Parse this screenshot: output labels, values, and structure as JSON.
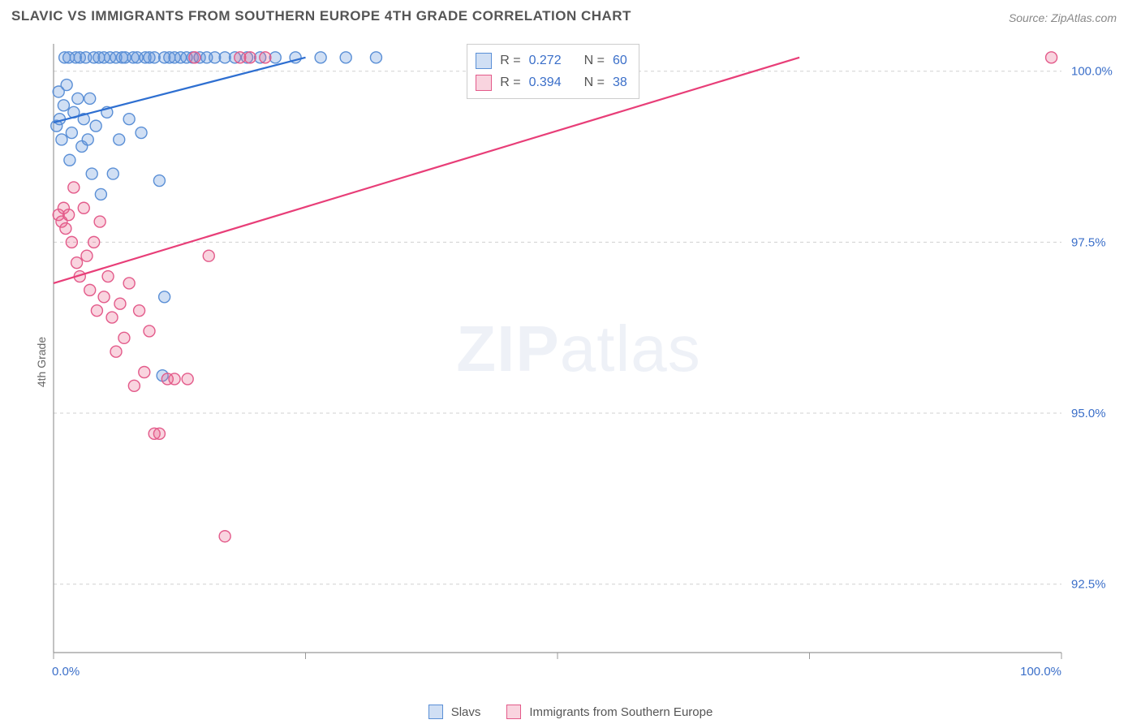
{
  "title": "SLAVIC VS IMMIGRANTS FROM SOUTHERN EUROPE 4TH GRADE CORRELATION CHART",
  "source_label": "Source: ZipAtlas.com",
  "ylabel": "4th Grade",
  "watermark_strong": "ZIP",
  "watermark_light": "atlas",
  "chart": {
    "type": "scatter",
    "xlim": [
      0,
      100
    ],
    "ylim": [
      91.5,
      100.4
    ],
    "x_ticks": [
      0,
      25,
      50,
      75,
      100
    ],
    "x_tick_labels_visible": [
      "0.0%",
      "",
      "",
      "",
      "100.0%"
    ],
    "y_ticks": [
      92.5,
      95.0,
      97.5,
      100.0
    ],
    "y_tick_labels": [
      "92.5%",
      "95.0%",
      "97.5%",
      "100.0%"
    ],
    "grid_color": "#d0d0d0",
    "grid_dash": "4,4",
    "axis_line_color": "#999999",
    "background_color": "#ffffff",
    "marker_radius": 7,
    "marker_stroke_width": 1.4,
    "line_width": 2.2,
    "label_fontsize": 15,
    "tick_color": "#3b6fc9"
  },
  "series": [
    {
      "key": "slavs",
      "label": "Slavs",
      "fill": "rgba(100,150,220,0.30)",
      "stroke": "#5a8fd6",
      "line_color": "#2e6fd1",
      "r_value": "0.272",
      "n_value": "60",
      "trend": {
        "x1": 0,
        "y1": 99.25,
        "x2": 25,
        "y2": 100.2
      },
      "points": [
        [
          0.3,
          99.2
        ],
        [
          0.5,
          99.7
        ],
        [
          0.6,
          99.3
        ],
        [
          0.8,
          99.0
        ],
        [
          1.0,
          99.5
        ],
        [
          1.1,
          100.2
        ],
        [
          1.3,
          99.8
        ],
        [
          1.5,
          100.2
        ],
        [
          1.6,
          98.7
        ],
        [
          1.8,
          99.1
        ],
        [
          2.0,
          99.4
        ],
        [
          2.2,
          100.2
        ],
        [
          2.4,
          99.6
        ],
        [
          2.6,
          100.2
        ],
        [
          2.8,
          98.9
        ],
        [
          3.0,
          99.3
        ],
        [
          3.2,
          100.2
        ],
        [
          3.4,
          99.0
        ],
        [
          3.6,
          99.6
        ],
        [
          3.8,
          98.5
        ],
        [
          4.0,
          100.2
        ],
        [
          4.2,
          99.2
        ],
        [
          4.5,
          100.2
        ],
        [
          4.7,
          98.2
        ],
        [
          5.0,
          100.2
        ],
        [
          5.3,
          99.4
        ],
        [
          5.6,
          100.2
        ],
        [
          5.9,
          98.5
        ],
        [
          6.2,
          100.2
        ],
        [
          6.5,
          99.0
        ],
        [
          6.8,
          100.2
        ],
        [
          7.1,
          100.2
        ],
        [
          7.5,
          99.3
        ],
        [
          7.9,
          100.2
        ],
        [
          8.3,
          100.2
        ],
        [
          8.7,
          99.1
        ],
        [
          9.1,
          100.2
        ],
        [
          9.5,
          100.2
        ],
        [
          10.0,
          100.2
        ],
        [
          10.5,
          98.4
        ],
        [
          11.0,
          100.2
        ],
        [
          11.5,
          100.2
        ],
        [
          12.0,
          100.2
        ],
        [
          12.6,
          100.2
        ],
        [
          13.2,
          100.2
        ],
        [
          13.8,
          100.2
        ],
        [
          14.5,
          100.2
        ],
        [
          15.2,
          100.2
        ],
        [
          16.0,
          100.2
        ],
        [
          17.0,
          100.2
        ],
        [
          18.0,
          100.2
        ],
        [
          19.2,
          100.2
        ],
        [
          20.5,
          100.2
        ],
        [
          22.0,
          100.2
        ],
        [
          24.0,
          100.2
        ],
        [
          26.5,
          100.2
        ],
        [
          29.0,
          100.2
        ],
        [
          32.0,
          100.2
        ],
        [
          10.8,
          95.55
        ],
        [
          11.0,
          96.7
        ]
      ]
    },
    {
      "key": "south_europe",
      "label": "Immigrants from Southern Europe",
      "fill": "rgba(235,100,140,0.28)",
      "stroke": "#e35a8a",
      "line_color": "#e83e78",
      "r_value": "0.394",
      "n_value": "38",
      "trend": {
        "x1": 0,
        "y1": 96.9,
        "x2": 74,
        "y2": 100.2
      },
      "points": [
        [
          0.5,
          97.9
        ],
        [
          0.8,
          97.8
        ],
        [
          1.0,
          98.0
        ],
        [
          1.2,
          97.7
        ],
        [
          1.5,
          97.9
        ],
        [
          1.8,
          97.5
        ],
        [
          2.0,
          98.3
        ],
        [
          2.3,
          97.2
        ],
        [
          2.6,
          97.0
        ],
        [
          3.0,
          98.0
        ],
        [
          3.3,
          97.3
        ],
        [
          3.6,
          96.8
        ],
        [
          4.0,
          97.5
        ],
        [
          4.3,
          96.5
        ],
        [
          4.6,
          97.8
        ],
        [
          5.0,
          96.7
        ],
        [
          5.4,
          97.0
        ],
        [
          5.8,
          96.4
        ],
        [
          6.2,
          95.9
        ],
        [
          6.6,
          96.6
        ],
        [
          7.0,
          96.1
        ],
        [
          7.5,
          96.9
        ],
        [
          8.0,
          95.4
        ],
        [
          8.5,
          96.5
        ],
        [
          9.0,
          95.6
        ],
        [
          9.5,
          96.2
        ],
        [
          10.0,
          94.7
        ],
        [
          10.5,
          94.7
        ],
        [
          11.3,
          95.5
        ],
        [
          12.0,
          95.5
        ],
        [
          13.3,
          95.5
        ],
        [
          14.0,
          100.2
        ],
        [
          15.4,
          97.3
        ],
        [
          17.0,
          93.2
        ],
        [
          18.5,
          100.2
        ],
        [
          19.5,
          100.2
        ],
        [
          21.0,
          100.2
        ],
        [
          99.0,
          100.2
        ]
      ]
    }
  ],
  "stats_box": {
    "r_label": "R =",
    "n_label": "N ="
  },
  "bottom_legend": {
    "s1_label": "Slavs",
    "s2_label": "Immigrants from Southern Europe"
  }
}
